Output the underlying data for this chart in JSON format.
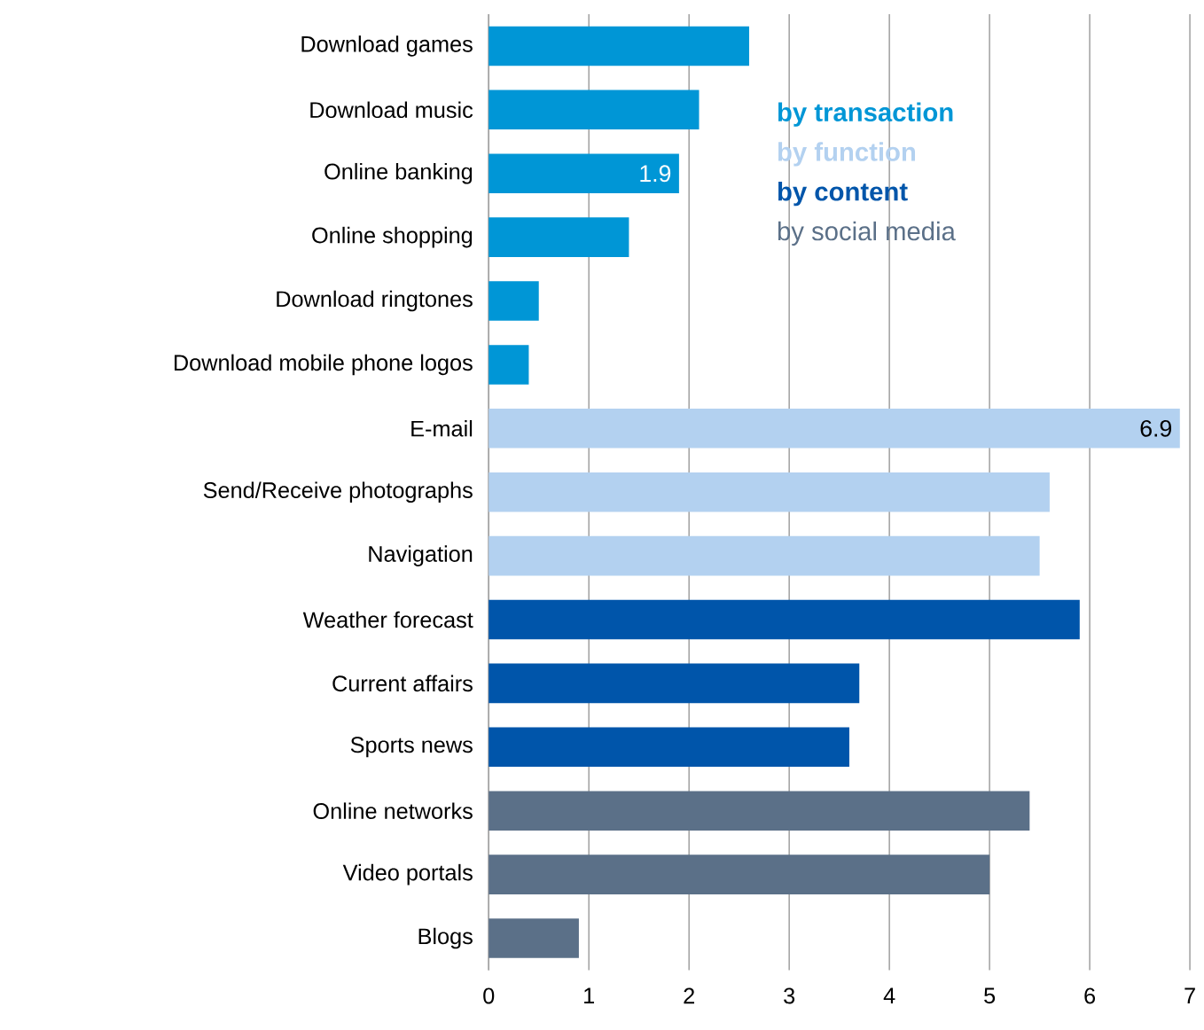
{
  "chart_data": {
    "type": "bar",
    "orientation": "horizontal",
    "categories": [
      "Download games",
      "Download music",
      "Online banking",
      "Online shopping",
      "Download ringtones",
      "Download mobile phone logos",
      "E-mail",
      "Send/Receive photographs",
      "Navigation",
      "Weather forecast",
      "Current affairs",
      "Sports news",
      "Online networks",
      "Video portals",
      "Blogs"
    ],
    "series": [
      {
        "name": "by transaction",
        "color": "#0096d6",
        "values": [
          2.6,
          2.1,
          1.9,
          1.4,
          0.5,
          0.4,
          null,
          null,
          null,
          null,
          null,
          null,
          null,
          null,
          null
        ],
        "value_labels": [
          null,
          null,
          "1.9",
          null,
          null,
          null,
          null,
          null,
          null,
          null,
          null,
          null,
          null,
          null,
          null
        ]
      },
      {
        "name": "by function",
        "color": "#b3d1f0",
        "values": [
          null,
          null,
          null,
          null,
          null,
          null,
          6.9,
          5.6,
          5.5,
          null,
          null,
          null,
          null,
          null,
          null
        ],
        "value_labels": [
          null,
          null,
          null,
          null,
          null,
          null,
          "6.9",
          null,
          null,
          null,
          null,
          null,
          null,
          null,
          null
        ]
      },
      {
        "name": "by content",
        "color": "#0055aa",
        "values": [
          null,
          null,
          null,
          null,
          null,
          null,
          null,
          null,
          null,
          5.9,
          3.7,
          3.6,
          null,
          null,
          null
        ]
      },
      {
        "name": "by social media",
        "color": "#5b7088",
        "values": [
          null,
          null,
          null,
          null,
          null,
          null,
          null,
          null,
          null,
          null,
          null,
          null,
          5.4,
          5.0,
          0.9
        ]
      }
    ],
    "xlim": [
      0,
      7
    ],
    "xticks": [
      0,
      1,
      2,
      3,
      4,
      5,
      6,
      7
    ],
    "grid": "x",
    "legend": "top right"
  }
}
